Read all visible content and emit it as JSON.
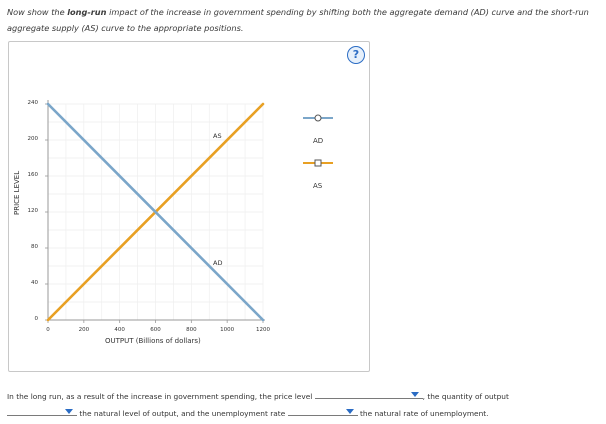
{
  "instructions": {
    "pre": "Now show the ",
    "bold": "long-run",
    "post": " impact of the increase in government spending by shifting both the aggregate demand (AD) curve and the short-run aggregate supply (AS) curve to the appropriate positions."
  },
  "help_button": "?",
  "chart_data": {
    "type": "line",
    "xlabel": "OUTPUT (Billions of dollars)",
    "ylabel": "PRICE LEVEL",
    "xlim": [
      0,
      1200
    ],
    "ylim": [
      0,
      240
    ],
    "x_ticks": [
      "0",
      "200",
      "400",
      "600",
      "800",
      "1000",
      "1200"
    ],
    "y_ticks": [
      "0",
      "40",
      "80",
      "120",
      "160",
      "200",
      "240"
    ],
    "series": [
      {
        "name": "AD",
        "color": "#7ba6c9",
        "points": [
          [
            0,
            240
          ],
          [
            1200,
            0
          ]
        ]
      },
      {
        "name": "AS",
        "color": "#e8a023",
        "points": [
          [
            0,
            0
          ],
          [
            1200,
            240
          ]
        ]
      }
    ],
    "annotations": [
      {
        "text": "AS",
        "x": 960,
        "y": 205
      },
      {
        "text": "AD",
        "x": 960,
        "y": 60
      }
    ]
  },
  "legend": {
    "items": [
      {
        "label": "AD",
        "marker": "circle",
        "color": "#7ba6c9"
      },
      {
        "label": "AS",
        "marker": "square",
        "color": "#e8a023"
      }
    ]
  },
  "question": {
    "part1": "In the long run, as a result of the increase in government spending, the price level",
    "part2": ", the quantity of output",
    "part3": "the natural level of output, and the unemployment rate",
    "part4": "the natural rate of unemployment."
  }
}
